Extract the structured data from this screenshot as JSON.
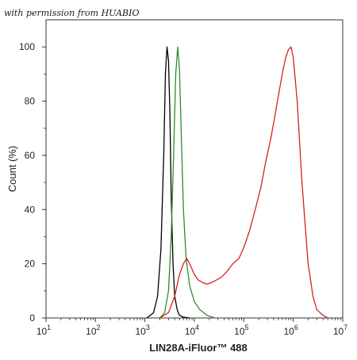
{
  "watermark": "with permission from HUABIO",
  "chart_data": {
    "type": "line",
    "title": "",
    "xlabel": "LIN28A-iFluor™ 488",
    "ylabel": "Count  (%)",
    "xscale": "log",
    "xlim": [
      10,
      10000000
    ],
    "ylim": [
      0,
      110
    ],
    "x_ticks": [
      {
        "value": 10,
        "base": "10",
        "exp": "1"
      },
      {
        "value": 100,
        "base": "10",
        "exp": "2"
      },
      {
        "value": 1000,
        "base": "10",
        "exp": "3"
      },
      {
        "value": 10000,
        "base": "10",
        "exp": "4"
      },
      {
        "value": 100000,
        "base": "10",
        "exp": "5"
      },
      {
        "value": 1000000,
        "base": "10",
        "exp": "6"
      },
      {
        "value": 10000000,
        "base": "10",
        "exp": "7"
      }
    ],
    "y_ticks": [
      0,
      20,
      40,
      60,
      80,
      100
    ],
    "grid": false,
    "legend": "none",
    "series": [
      {
        "color": "#000000",
        "x": [
          1100,
          1500,
          1800,
          2100,
          2400,
          2600,
          2800,
          3000,
          3200,
          3400,
          3700,
          4000,
          4500,
          5000,
          6000,
          8000
        ],
        "y": [
          0,
          2,
          8,
          25,
          60,
          90,
          100,
          95,
          75,
          45,
          20,
          8,
          3,
          1,
          0.3,
          0
        ]
      },
      {
        "color": "#2e8b2e",
        "x": [
          2000,
          2500,
          3000,
          3400,
          3800,
          4200,
          4600,
          5000,
          5400,
          6000,
          6800,
          8000,
          10000,
          13000,
          18000,
          26000
        ],
        "y": [
          0,
          2,
          10,
          30,
          60,
          90,
          100,
          92,
          70,
          40,
          22,
          12,
          6,
          3,
          1,
          0
        ]
      },
      {
        "color": "#d62020",
        "x": [
          2000,
          3000,
          4000,
          5000,
          6000,
          7000,
          8000,
          9000,
          10000,
          12000,
          15000,
          18000,
          22000,
          28000,
          35000,
          45000,
          60000,
          80000,
          100000,
          130000,
          170000,
          220000,
          280000,
          350000,
          420000,
          500000,
          600000,
          700000,
          800000,
          900000,
          1000000,
          1200000,
          1500000,
          2000000,
          2500000,
          3000000,
          4000000,
          5000000
        ],
        "y": [
          0,
          2,
          8,
          16,
          20,
          22,
          20,
          18,
          16,
          14,
          13,
          12.5,
          13,
          14,
          15,
          17,
          20,
          22,
          26,
          32,
          40,
          48,
          58,
          66,
          74,
          82,
          90,
          96,
          99,
          100,
          96,
          80,
          50,
          20,
          8,
          3,
          1,
          0
        ]
      }
    ]
  }
}
